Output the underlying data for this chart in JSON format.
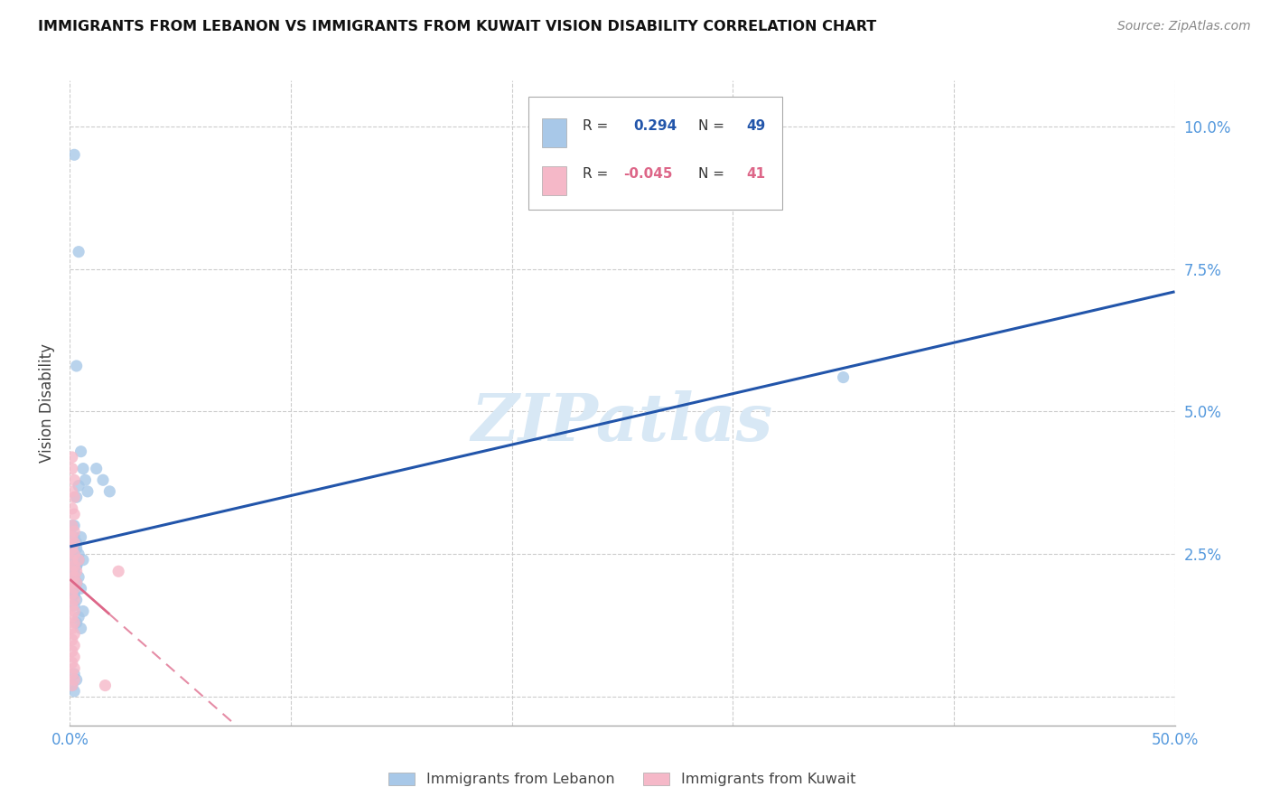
{
  "title": "IMMIGRANTS FROM LEBANON VS IMMIGRANTS FROM KUWAIT VISION DISABILITY CORRELATION CHART",
  "source": "Source: ZipAtlas.com",
  "ylabel": "Vision Disability",
  "xlim": [
    0.0,
    0.5
  ],
  "ylim": [
    -0.005,
    0.108
  ],
  "xticks": [
    0.0,
    0.1,
    0.2,
    0.3,
    0.4,
    0.5
  ],
  "xtick_labels": [
    "0.0%",
    "",
    "",
    "",
    "",
    "50.0%"
  ],
  "yticks": [
    0.0,
    0.025,
    0.05,
    0.075,
    0.1
  ],
  "ytick_labels": [
    "",
    "2.5%",
    "5.0%",
    "7.5%",
    "10.0%"
  ],
  "lebanon_R": 0.294,
  "lebanon_N": 49,
  "kuwait_R": -0.045,
  "kuwait_N": 41,
  "lebanon_color": "#a8c8e8",
  "kuwait_color": "#f5b8c8",
  "lebanon_line_color": "#2255aa",
  "kuwait_line_color": "#dd6688",
  "background_color": "#ffffff",
  "grid_color": "#cccccc",
  "watermark_text": "ZIPatlas",
  "lebanon_x": [
    0.002,
    0.004,
    0.003,
    0.005,
    0.006,
    0.004,
    0.003,
    0.002,
    0.005,
    0.003,
    0.004,
    0.006,
    0.003,
    0.002,
    0.004,
    0.003,
    0.005,
    0.002,
    0.003,
    0.002,
    0.001,
    0.002,
    0.003,
    0.002,
    0.001,
    0.002,
    0.003,
    0.002,
    0.004,
    0.003,
    0.001,
    0.002,
    0.003,
    0.001,
    0.002,
    0.007,
    0.008,
    0.012,
    0.015,
    0.018,
    0.006,
    0.004,
    0.003,
    0.005,
    0.002,
    0.003,
    0.001,
    0.002,
    0.35
  ],
  "lebanon_y": [
    0.095,
    0.078,
    0.058,
    0.043,
    0.04,
    0.037,
    0.035,
    0.03,
    0.028,
    0.026,
    0.025,
    0.024,
    0.023,
    0.022,
    0.021,
    0.02,
    0.019,
    0.018,
    0.017,
    0.016,
    0.03,
    0.028,
    0.027,
    0.026,
    0.025,
    0.024,
    0.023,
    0.025,
    0.024,
    0.023,
    0.022,
    0.021,
    0.02,
    0.019,
    0.018,
    0.038,
    0.036,
    0.04,
    0.038,
    0.036,
    0.015,
    0.014,
    0.013,
    0.012,
    0.004,
    0.003,
    0.002,
    0.001,
    0.056
  ],
  "kuwait_x": [
    0.001,
    0.001,
    0.002,
    0.001,
    0.002,
    0.001,
    0.002,
    0.001,
    0.002,
    0.001,
    0.002,
    0.001,
    0.002,
    0.001,
    0.002,
    0.001,
    0.002,
    0.001,
    0.002,
    0.001,
    0.002,
    0.001,
    0.002,
    0.001,
    0.002,
    0.001,
    0.002,
    0.001,
    0.002,
    0.001,
    0.002,
    0.001,
    0.002,
    0.001,
    0.002,
    0.003,
    0.003,
    0.004,
    0.016,
    0.022,
    0.001
  ],
  "kuwait_y": [
    0.042,
    0.04,
    0.038,
    0.036,
    0.035,
    0.033,
    0.032,
    0.03,
    0.029,
    0.028,
    0.027,
    0.026,
    0.025,
    0.024,
    0.023,
    0.022,
    0.021,
    0.02,
    0.019,
    0.018,
    0.017,
    0.016,
    0.015,
    0.014,
    0.013,
    0.012,
    0.011,
    0.01,
    0.009,
    0.008,
    0.007,
    0.006,
    0.005,
    0.004,
    0.003,
    0.022,
    0.02,
    0.024,
    0.002,
    0.022,
    0.002
  ]
}
